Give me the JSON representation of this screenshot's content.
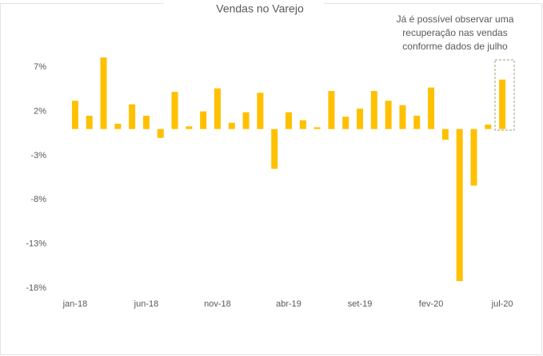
{
  "chart_data": {
    "type": "bar",
    "title": "Vendas no Varejo",
    "annotation": [
      "Já é possível observar uma",
      "recuperação nas vendas",
      "conforme dados de julho"
    ],
    "categories": [
      "jan-18",
      null,
      null,
      null,
      null,
      "jun-18",
      null,
      null,
      null,
      null,
      "nov-18",
      null,
      null,
      null,
      null,
      "abr-19",
      null,
      null,
      null,
      null,
      "set-19",
      null,
      null,
      null,
      null,
      "fev-20",
      null,
      null,
      null,
      null,
      "jul-20"
    ],
    "values": [
      3.2,
      1.5,
      8.1,
      0.6,
      2.8,
      1.5,
      -1.0,
      4.2,
      0.3,
      2.0,
      4.6,
      0.7,
      1.9,
      4.1,
      -4.5,
      1.9,
      1.0,
      0.2,
      4.3,
      1.4,
      2.3,
      4.3,
      3.2,
      2.7,
      1.5,
      4.7,
      -1.2,
      -17.2,
      -6.4,
      0.5,
      5.6
    ],
    "color": "#FFC000",
    "ylim": [
      -18,
      9
    ],
    "yticks": [
      {
        "value": 7,
        "label": "7%"
      },
      {
        "value": 2,
        "label": "2%"
      },
      {
        "value": -3,
        "label": "-3%"
      },
      {
        "value": -8,
        "label": "-8%"
      },
      {
        "value": -13,
        "label": "-13%"
      },
      {
        "value": -18,
        "label": "-18%"
      }
    ],
    "grid": false
  }
}
